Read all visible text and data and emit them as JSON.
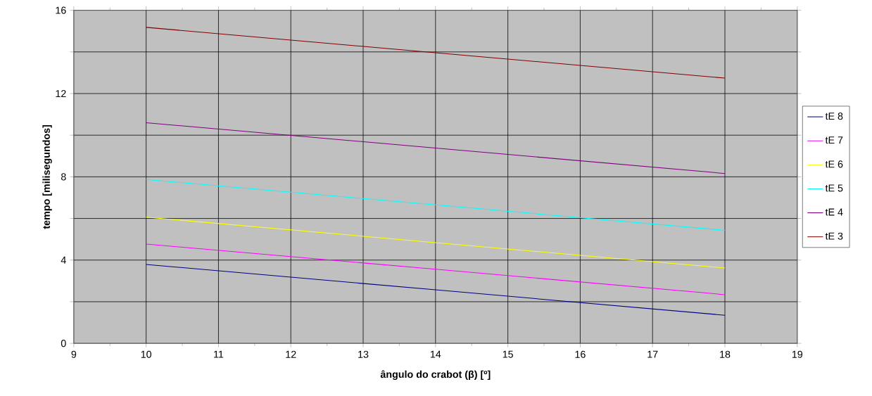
{
  "chart_data": {
    "type": "line",
    "xlabel": "ângulo do crabot (β) [º]",
    "ylabel": "tempo [milisegundos]",
    "x": [
      10,
      14,
      18
    ],
    "series": [
      {
        "name": "tE 8",
        "color": "#000080",
        "values": [
          3.79,
          2.57,
          1.35
        ]
      },
      {
        "name": "tE 7",
        "color": "#ff00ff",
        "values": [
          4.77,
          3.56,
          2.34
        ]
      },
      {
        "name": "tE 6",
        "color": "#ffff00",
        "values": [
          6.06,
          4.84,
          3.62
        ]
      },
      {
        "name": "tE 5",
        "color": "#00ffff",
        "values": [
          7.87,
          6.65,
          5.43
        ]
      },
      {
        "name": "tE 4",
        "color": "#800080",
        "values": [
          10.6,
          9.38,
          8.16
        ]
      },
      {
        "name": "tE 3",
        "color": "#800000",
        "values": [
          15.18,
          13.96,
          12.74
        ]
      }
    ],
    "xlim": [
      9,
      19
    ],
    "xticks": [
      9,
      10,
      11,
      12,
      13,
      14,
      15,
      16,
      17,
      18,
      19
    ],
    "ylim": [
      0,
      16
    ],
    "yticks": [
      0,
      {
        "value": 2,
        "label": null
      },
      4,
      {
        "value": 6,
        "label": null
      },
      8,
      {
        "value": 10,
        "label": null
      },
      12,
      {
        "value": 14,
        "label": null
      },
      16
    ],
    "grid": true,
    "legend": "right",
    "marker": "none",
    "line_style": "solid"
  }
}
